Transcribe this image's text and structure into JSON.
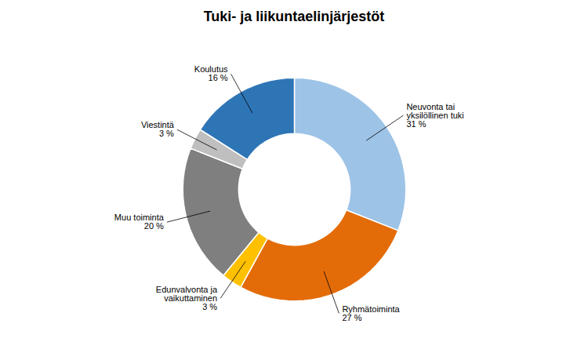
{
  "chart_data": {
    "type": "pie",
    "title": "Tuki- ja liikuntaelinjärjestöt",
    "categories": [
      "Neuvonta tai\nyksilöllinen tuki",
      "Ryhmätoiminta",
      "Edunvalvonta ja\nvaikuttaminen",
      "Muu toiminta",
      "Viestintä",
      "Koulutus"
    ],
    "values": [
      31,
      27,
      3,
      20,
      3,
      16
    ],
    "value_labels": [
      "31 %",
      "27 %",
      "3 %",
      "20 %",
      "3 %",
      "16 %"
    ],
    "colors": [
      "#9DC3E6",
      "#E36C09",
      "#FFC000",
      "#7F7F7F",
      "#BFBFBF",
      "#2E75B6"
    ],
    "data_labels": true
  }
}
